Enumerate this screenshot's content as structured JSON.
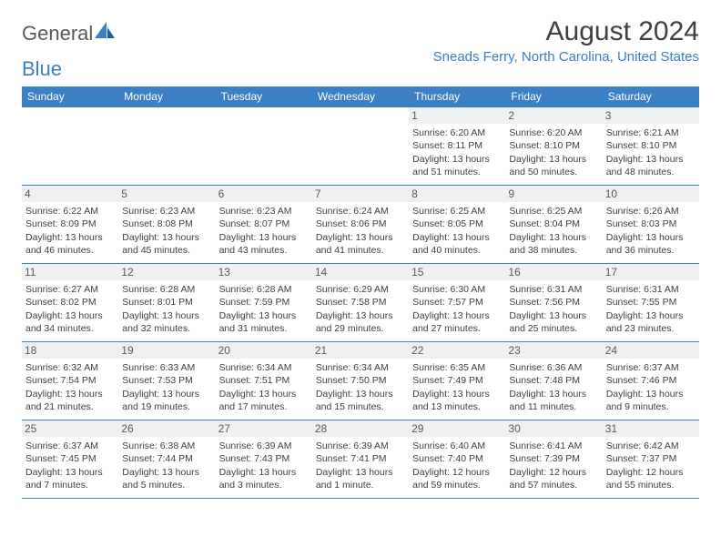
{
  "brand": {
    "part1": "General",
    "part2": "Blue"
  },
  "title": "August 2024",
  "location": "Sneads Ferry, North Carolina, United States",
  "colors": {
    "accent": "#3b7fc4",
    "text": "#404040",
    "bg": "#ffffff"
  },
  "days": [
    "Sunday",
    "Monday",
    "Tuesday",
    "Wednesday",
    "Thursday",
    "Friday",
    "Saturday"
  ],
  "weeks": [
    [
      {
        "n": "",
        "sr": "",
        "ss": "",
        "d1": "",
        "d2": ""
      },
      {
        "n": "",
        "sr": "",
        "ss": "",
        "d1": "",
        "d2": ""
      },
      {
        "n": "",
        "sr": "",
        "ss": "",
        "d1": "",
        "d2": ""
      },
      {
        "n": "",
        "sr": "",
        "ss": "",
        "d1": "",
        "d2": ""
      },
      {
        "n": "1",
        "sr": "Sunrise: 6:20 AM",
        "ss": "Sunset: 8:11 PM",
        "d1": "Daylight: 13 hours",
        "d2": "and 51 minutes."
      },
      {
        "n": "2",
        "sr": "Sunrise: 6:20 AM",
        "ss": "Sunset: 8:10 PM",
        "d1": "Daylight: 13 hours",
        "d2": "and 50 minutes."
      },
      {
        "n": "3",
        "sr": "Sunrise: 6:21 AM",
        "ss": "Sunset: 8:10 PM",
        "d1": "Daylight: 13 hours",
        "d2": "and 48 minutes."
      }
    ],
    [
      {
        "n": "4",
        "sr": "Sunrise: 6:22 AM",
        "ss": "Sunset: 8:09 PM",
        "d1": "Daylight: 13 hours",
        "d2": "and 46 minutes."
      },
      {
        "n": "5",
        "sr": "Sunrise: 6:23 AM",
        "ss": "Sunset: 8:08 PM",
        "d1": "Daylight: 13 hours",
        "d2": "and 45 minutes."
      },
      {
        "n": "6",
        "sr": "Sunrise: 6:23 AM",
        "ss": "Sunset: 8:07 PM",
        "d1": "Daylight: 13 hours",
        "d2": "and 43 minutes."
      },
      {
        "n": "7",
        "sr": "Sunrise: 6:24 AM",
        "ss": "Sunset: 8:06 PM",
        "d1": "Daylight: 13 hours",
        "d2": "and 41 minutes."
      },
      {
        "n": "8",
        "sr": "Sunrise: 6:25 AM",
        "ss": "Sunset: 8:05 PM",
        "d1": "Daylight: 13 hours",
        "d2": "and 40 minutes."
      },
      {
        "n": "9",
        "sr": "Sunrise: 6:25 AM",
        "ss": "Sunset: 8:04 PM",
        "d1": "Daylight: 13 hours",
        "d2": "and 38 minutes."
      },
      {
        "n": "10",
        "sr": "Sunrise: 6:26 AM",
        "ss": "Sunset: 8:03 PM",
        "d1": "Daylight: 13 hours",
        "d2": "and 36 minutes."
      }
    ],
    [
      {
        "n": "11",
        "sr": "Sunrise: 6:27 AM",
        "ss": "Sunset: 8:02 PM",
        "d1": "Daylight: 13 hours",
        "d2": "and 34 minutes."
      },
      {
        "n": "12",
        "sr": "Sunrise: 6:28 AM",
        "ss": "Sunset: 8:01 PM",
        "d1": "Daylight: 13 hours",
        "d2": "and 32 minutes."
      },
      {
        "n": "13",
        "sr": "Sunrise: 6:28 AM",
        "ss": "Sunset: 7:59 PM",
        "d1": "Daylight: 13 hours",
        "d2": "and 31 minutes."
      },
      {
        "n": "14",
        "sr": "Sunrise: 6:29 AM",
        "ss": "Sunset: 7:58 PM",
        "d1": "Daylight: 13 hours",
        "d2": "and 29 minutes."
      },
      {
        "n": "15",
        "sr": "Sunrise: 6:30 AM",
        "ss": "Sunset: 7:57 PM",
        "d1": "Daylight: 13 hours",
        "d2": "and 27 minutes."
      },
      {
        "n": "16",
        "sr": "Sunrise: 6:31 AM",
        "ss": "Sunset: 7:56 PM",
        "d1": "Daylight: 13 hours",
        "d2": "and 25 minutes."
      },
      {
        "n": "17",
        "sr": "Sunrise: 6:31 AM",
        "ss": "Sunset: 7:55 PM",
        "d1": "Daylight: 13 hours",
        "d2": "and 23 minutes."
      }
    ],
    [
      {
        "n": "18",
        "sr": "Sunrise: 6:32 AM",
        "ss": "Sunset: 7:54 PM",
        "d1": "Daylight: 13 hours",
        "d2": "and 21 minutes."
      },
      {
        "n": "19",
        "sr": "Sunrise: 6:33 AM",
        "ss": "Sunset: 7:53 PM",
        "d1": "Daylight: 13 hours",
        "d2": "and 19 minutes."
      },
      {
        "n": "20",
        "sr": "Sunrise: 6:34 AM",
        "ss": "Sunset: 7:51 PM",
        "d1": "Daylight: 13 hours",
        "d2": "and 17 minutes."
      },
      {
        "n": "21",
        "sr": "Sunrise: 6:34 AM",
        "ss": "Sunset: 7:50 PM",
        "d1": "Daylight: 13 hours",
        "d2": "and 15 minutes."
      },
      {
        "n": "22",
        "sr": "Sunrise: 6:35 AM",
        "ss": "Sunset: 7:49 PM",
        "d1": "Daylight: 13 hours",
        "d2": "and 13 minutes."
      },
      {
        "n": "23",
        "sr": "Sunrise: 6:36 AM",
        "ss": "Sunset: 7:48 PM",
        "d1": "Daylight: 13 hours",
        "d2": "and 11 minutes."
      },
      {
        "n": "24",
        "sr": "Sunrise: 6:37 AM",
        "ss": "Sunset: 7:46 PM",
        "d1": "Daylight: 13 hours",
        "d2": "and 9 minutes."
      }
    ],
    [
      {
        "n": "25",
        "sr": "Sunrise: 6:37 AM",
        "ss": "Sunset: 7:45 PM",
        "d1": "Daylight: 13 hours",
        "d2": "and 7 minutes."
      },
      {
        "n": "26",
        "sr": "Sunrise: 6:38 AM",
        "ss": "Sunset: 7:44 PM",
        "d1": "Daylight: 13 hours",
        "d2": "and 5 minutes."
      },
      {
        "n": "27",
        "sr": "Sunrise: 6:39 AM",
        "ss": "Sunset: 7:43 PM",
        "d1": "Daylight: 13 hours",
        "d2": "and 3 minutes."
      },
      {
        "n": "28",
        "sr": "Sunrise: 6:39 AM",
        "ss": "Sunset: 7:41 PM",
        "d1": "Daylight: 13 hours",
        "d2": "and 1 minute."
      },
      {
        "n": "29",
        "sr": "Sunrise: 6:40 AM",
        "ss": "Sunset: 7:40 PM",
        "d1": "Daylight: 12 hours",
        "d2": "and 59 minutes."
      },
      {
        "n": "30",
        "sr": "Sunrise: 6:41 AM",
        "ss": "Sunset: 7:39 PM",
        "d1": "Daylight: 12 hours",
        "d2": "and 57 minutes."
      },
      {
        "n": "31",
        "sr": "Sunrise: 6:42 AM",
        "ss": "Sunset: 7:37 PM",
        "d1": "Daylight: 12 hours",
        "d2": "and 55 minutes."
      }
    ]
  ]
}
